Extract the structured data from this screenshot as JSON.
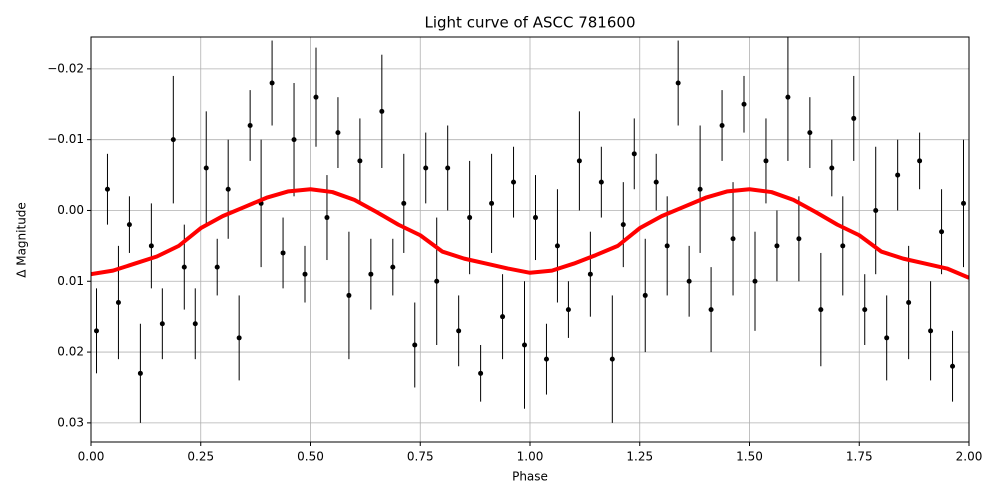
{
  "chart_data": {
    "type": "scatter",
    "title": "Light curve of ASCC 781600",
    "xlabel": "Phase",
    "ylabel": "Δ Magnitude",
    "xlim": [
      0,
      2
    ],
    "ylim": [
      -0.0245,
      0.0327
    ],
    "invert_y": true,
    "grid": true,
    "xticks": [
      {
        "value": 0,
        "label": "0.00"
      },
      0.25,
      {
        "value": 0.5,
        "label": "0.50"
      },
      0.75,
      {
        "value": 1,
        "label": "1.00"
      },
      1.25,
      {
        "value": 1.5,
        "label": "1.50"
      },
      1.75,
      {
        "value": 2,
        "label": "2.00"
      }
    ],
    "yticks": [
      {
        "value": -0.02,
        "label": "−0.02"
      },
      {
        "value": -0.01,
        "label": "−0.01"
      },
      {
        "value": 0,
        "label": "0.00"
      },
      0.01,
      0.02,
      0.03
    ],
    "series": [
      {
        "kind": "errorbar",
        "color": "#000000",
        "x": [
          0.0125,
          0.0375,
          0.0625,
          0.0875,
          0.1125,
          0.1375,
          0.1625,
          0.1875,
          0.2125,
          0.2375,
          0.2625,
          0.2875,
          0.3125,
          0.3375,
          0.3625,
          0.3875,
          0.4125,
          0.4375,
          0.4625,
          0.4875,
          0.5125,
          0.5375,
          0.5625,
          0.5875,
          0.6125,
          0.6375,
          0.6625,
          0.6875,
          0.7125,
          0.7375,
          0.7625,
          0.7875,
          0.8125,
          0.8375,
          0.8625,
          0.8875,
          0.9125,
          0.9375,
          0.9625,
          0.9875,
          1.0125,
          1.0375,
          1.0625,
          1.0875,
          1.1125,
          1.1375,
          1.1625,
          1.1875,
          1.2125,
          1.2375,
          1.2625,
          1.2875,
          1.3125,
          1.3375,
          1.3625,
          1.3875,
          1.4125,
          1.4375,
          1.4625,
          1.4875,
          1.5125,
          1.5375,
          1.5625,
          1.5875,
          1.6125,
          1.6375,
          1.6625,
          1.6875,
          1.7125,
          1.7375,
          1.7625,
          1.7875,
          1.8125,
          1.8375,
          1.8625,
          1.8875,
          1.9125,
          1.9375,
          1.9625,
          1.9875
        ],
        "values": [
          0.017,
          -0.003,
          0.013,
          0.002,
          0.023,
          0.005,
          0.016,
          -0.01,
          0.008,
          0.016,
          -0.006,
          0.008,
          -0.003,
          0.018,
          -0.012,
          -0.001,
          -0.018,
          0.006,
          -0.01,
          0.009,
          -0.016,
          0.001,
          -0.011,
          0.012,
          -0.007,
          0.009,
          -0.014,
          0.008,
          -0.001,
          0.019,
          -0.006,
          0.01,
          -0.006,
          0.017,
          0.001,
          0.023,
          -0.001,
          0.015,
          -0.004,
          0.019,
          0.001,
          0.021,
          0.005,
          0.014,
          -0.007,
          0.009,
          -0.004,
          0.021,
          0.002,
          -0.008,
          0.012,
          -0.004,
          0.005,
          -0.018,
          0.01,
          -0.003,
          0.014,
          -0.012,
          0.004,
          -0.015,
          0.01,
          -0.007,
          0.005,
          -0.016,
          0.004,
          -0.011,
          0.014,
          -0.006,
          0.005,
          -0.013,
          0.014,
          0.0,
          0.018,
          -0.005,
          0.013,
          -0.007,
          0.017,
          0.003,
          0.022,
          -0.001
        ],
        "errors": [
          0.006,
          0.005,
          0.008,
          0.004,
          0.007,
          0.006,
          0.005,
          0.009,
          0.006,
          0.005,
          0.008,
          0.004,
          0.007,
          0.006,
          0.005,
          0.009,
          0.006,
          0.005,
          0.008,
          0.004,
          0.007,
          0.006,
          0.005,
          0.009,
          0.006,
          0.005,
          0.008,
          0.004,
          0.007,
          0.006,
          0.005,
          0.009,
          0.006,
          0.005,
          0.008,
          0.004,
          0.007,
          0.006,
          0.005,
          0.009,
          0.006,
          0.005,
          0.008,
          0.004,
          0.007,
          0.006,
          0.005,
          0.009,
          0.006,
          0.005,
          0.008,
          0.004,
          0.007,
          0.006,
          0.005,
          0.009,
          0.006,
          0.005,
          0.008,
          0.004,
          0.007,
          0.006,
          0.005,
          0.009,
          0.006,
          0.005,
          0.008,
          0.004,
          0.007,
          0.006,
          0.005,
          0.009,
          0.006,
          0.005,
          0.008,
          0.004,
          0.007,
          0.006,
          0.005,
          0.009
        ]
      },
      {
        "kind": "line",
        "color": "#ff0000",
        "x": [
          0,
          0.05,
          0.1,
          0.15,
          0.2,
          0.25,
          0.3,
          0.35,
          0.4,
          0.45,
          0.5,
          0.55,
          0.6,
          0.65,
          0.7,
          0.75,
          0.8,
          0.85,
          0.9,
          0.95,
          1,
          1.05,
          1.1,
          1.15,
          1.2,
          1.25,
          1.3,
          1.35,
          1.4,
          1.45,
          1.5,
          1.55,
          1.6,
          1.65,
          1.7,
          1.75,
          1.8,
          1.85,
          1.9,
          1.95,
          2
        ],
        "values": [
          0.009,
          0.0085,
          0.0075,
          0.0065,
          0.005,
          0.0025,
          0.0008,
          -0.0005,
          -0.0018,
          -0.0027,
          -0.003,
          -0.0026,
          -0.0015,
          0.0002,
          0.002,
          0.0035,
          0.0058,
          0.0068,
          0.0075,
          0.0082,
          0.0088,
          0.0085,
          0.0075,
          0.0063,
          0.005,
          0.0025,
          0.0008,
          -0.0005,
          -0.0018,
          -0.0027,
          -0.003,
          -0.0026,
          -0.0015,
          0.0002,
          0.002,
          0.0035,
          0.0058,
          0.0068,
          0.0075,
          0.0082,
          0.0095
        ]
      }
    ]
  }
}
